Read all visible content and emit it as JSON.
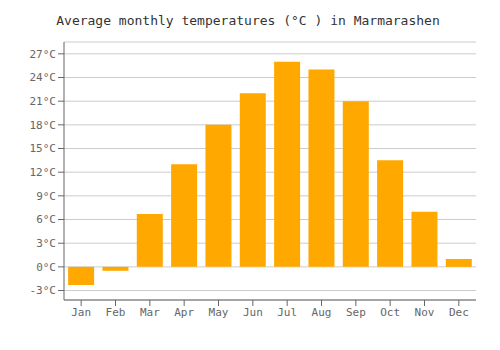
{
  "chart_data": {
    "type": "bar",
    "title": "Average monthly temperatures (°C ) in Marmarashen",
    "categories": [
      "Jan",
      "Feb",
      "Mar",
      "Apr",
      "May",
      "Jun",
      "Jul",
      "Aug",
      "Sep",
      "Oct",
      "Nov",
      "Dec"
    ],
    "values": [
      -2.3,
      -0.5,
      6.7,
      13.0,
      18.0,
      22.0,
      26.0,
      25.0,
      21.0,
      13.5,
      7.0,
      1.0
    ],
    "color": "#FFA800",
    "ylim": [
      -4.2,
      28.5
    ],
    "yticks": [
      {
        "value": -3,
        "label": "-3°C"
      },
      {
        "value": 0,
        "label": "0°C"
      },
      {
        "value": 3,
        "label": "3°C"
      },
      {
        "value": 6,
        "label": "6°C"
      },
      {
        "value": 9,
        "label": "9°C"
      },
      {
        "value": 12,
        "label": "12°C"
      },
      {
        "value": 15,
        "label": "15°C"
      },
      {
        "value": 18,
        "label": "18°C"
      },
      {
        "value": 21,
        "label": "21°C"
      },
      {
        "value": 24,
        "label": "24°C"
      },
      {
        "value": 27,
        "label": "27°C"
      }
    ],
    "grid": true
  }
}
